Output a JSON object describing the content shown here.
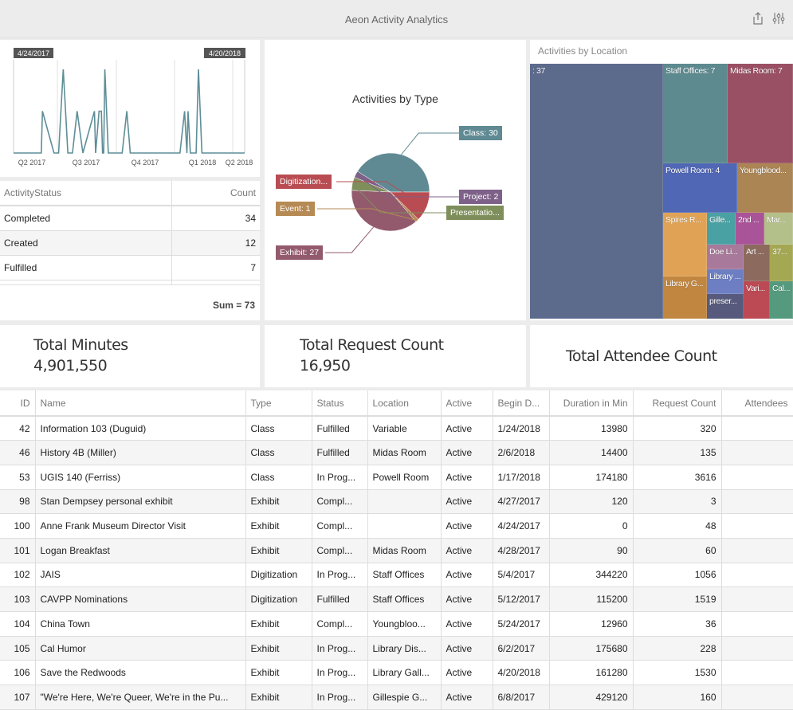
{
  "app": {
    "title": "Aeon Activity Analytics",
    "icons": [
      "share-icon",
      "settings-sliders-icon"
    ]
  },
  "timeline": {
    "range_start_label": "4/24/2017",
    "range_end_label": "4/20/2018",
    "x_ticks": [
      "Q2 2017",
      "Q3 2017",
      "Q4 2017",
      "Q1 2018",
      "Q2 2018"
    ],
    "line_color": "#5e8e97"
  },
  "status_table": {
    "headers": [
      "ActivityStatus",
      "Count"
    ],
    "rows": [
      {
        "status": "Completed",
        "count": "34"
      },
      {
        "status": "Created",
        "count": "12"
      },
      {
        "status": "Fulfilled",
        "count": "7"
      }
    ],
    "sum_label": "Sum = 73"
  },
  "chart_data": [
    {
      "type": "line",
      "title": "",
      "xlabel": "",
      "ylabel": "",
      "x_ticks": [
        "Q2 2017",
        "Q3 2017",
        "Q4 2017",
        "Q1 2018",
        "Q2 2018"
      ],
      "x_range": [
        "4/24/2017",
        "4/20/2018"
      ],
      "series": [
        {
          "name": "Activities",
          "values_note": "sparse daily counts with spikes of 1 and 2",
          "points": [
            {
              "t": 0.0,
              "y": 0
            },
            {
              "t": 0.12,
              "y": 0
            },
            {
              "t": 0.125,
              "y": 1
            },
            {
              "t": 0.175,
              "y": 0
            },
            {
              "t": 0.195,
              "y": 0
            },
            {
              "t": 0.215,
              "y": 2
            },
            {
              "t": 0.235,
              "y": 0
            },
            {
              "t": 0.255,
              "y": 0
            },
            {
              "t": 0.275,
              "y": 1
            },
            {
              "t": 0.3,
              "y": 0
            },
            {
              "t": 0.35,
              "y": 1
            },
            {
              "t": 0.355,
              "y": 0
            },
            {
              "t": 0.37,
              "y": 1
            },
            {
              "t": 0.38,
              "y": 1
            },
            {
              "t": 0.385,
              "y": 0
            },
            {
              "t": 0.39,
              "y": 0
            },
            {
              "t": 0.395,
              "y": 2
            },
            {
              "t": 0.41,
              "y": 0
            },
            {
              "t": 0.47,
              "y": 0
            },
            {
              "t": 0.49,
              "y": 1
            },
            {
              "t": 0.505,
              "y": 0
            },
            {
              "t": 0.72,
              "y": 0
            },
            {
              "t": 0.74,
              "y": 1
            },
            {
              "t": 0.75,
              "y": 0
            },
            {
              "t": 0.755,
              "y": 1
            },
            {
              "t": 0.765,
              "y": 0
            },
            {
              "t": 0.79,
              "y": 0
            },
            {
              "t": 0.8,
              "y": 2
            },
            {
              "t": 0.815,
              "y": 0
            },
            {
              "t": 1.0,
              "y": 0
            }
          ]
        }
      ],
      "ylim": [
        0,
        2
      ],
      "grid": true
    },
    {
      "type": "pie",
      "title": "Activities by Type",
      "slices": [
        {
          "label": "Class: 30",
          "name": "Class",
          "value": 30,
          "color": "#5f8a93"
        },
        {
          "label": "Project: 2",
          "name": "Project",
          "value": 2,
          "color": "#7e6189"
        },
        {
          "label": "Presentatio...",
          "name": "Presentation",
          "value": 4,
          "color": "#7f8f5c"
        },
        {
          "label": "Exhibit: 27",
          "name": "Exhibit",
          "value": 27,
          "color": "#935a6d"
        },
        {
          "label": "Event: 1",
          "name": "Event",
          "value": 1,
          "color": "#b68a55"
        },
        {
          "label": "Digitization...",
          "name": "Digitization",
          "value": 9,
          "color": "#b84c52"
        }
      ],
      "legend": "callout-labels"
    },
    {
      "type": "treemap",
      "title": "Activities by Location",
      "cells": [
        {
          "label": ": 37",
          "value": 37,
          "color": "#5c6a8c"
        },
        {
          "label": "Staff Offices: 7",
          "value": 7,
          "color": "#5d8a8f"
        },
        {
          "label": "Midas Room: 7",
          "value": 7,
          "color": "#9a5064"
        },
        {
          "label": "Powell Room: 4",
          "value": 4,
          "color": "#5067b5"
        },
        {
          "label": "Youngblood...",
          "value": 4,
          "color": "#ac8554"
        },
        {
          "label": "Spires R...",
          "value": 2,
          "color": "#e0a356"
        },
        {
          "label": "Library G...",
          "value": 2,
          "color": "#c18640"
        },
        {
          "label": "Gille...",
          "value": 1,
          "color": "#4aa1a3"
        },
        {
          "label": "2nd ...",
          "value": 1,
          "color": "#a95399"
        },
        {
          "label": "Mar...",
          "value": 1,
          "color": "#b4c08a"
        },
        {
          "label": "Doe Li...",
          "value": 1,
          "color": "#a8799a"
        },
        {
          "label": "Art ...",
          "value": 1,
          "color": "#8c6a5e"
        },
        {
          "label": "37...",
          "value": 1,
          "color": "#a5a852"
        },
        {
          "label": "Library ...",
          "value": 1,
          "color": "#6d7fc2"
        },
        {
          "label": "Vari...",
          "value": 1,
          "color": "#bc4a54"
        },
        {
          "label": "Cal...",
          "value": 1,
          "color": "#559a7e"
        },
        {
          "label": "preser...",
          "value": 1,
          "color": "#575a7c"
        }
      ]
    }
  ],
  "kpis": [
    {
      "label": "Total Minutes",
      "value": "4,901,550"
    },
    {
      "label": "Total Request Count",
      "value": "16,950"
    },
    {
      "label": "Total Attendee Count",
      "value": ""
    }
  ],
  "grid": {
    "headers": [
      "ID",
      "Name",
      "Type",
      "Status",
      "Location",
      "Active",
      "Begin D...",
      "Duration in Min",
      "Request Count",
      "Attendees"
    ],
    "rows": [
      [
        "42",
        "Information 103 (Duguid)",
        "Class",
        "Fulfilled",
        "Variable",
        "Active",
        "1/24/2018",
        "13980",
        "320",
        ""
      ],
      [
        "46",
        "History 4B (Miller)",
        "Class",
        "Fulfilled",
        "Midas Room",
        "Active",
        "2/6/2018",
        "14400",
        "135",
        ""
      ],
      [
        "53",
        "UGIS 140 (Ferriss)",
        "Class",
        "In Prog...",
        "Powell Room",
        "Active",
        "1/17/2018",
        "174180",
        "3616",
        ""
      ],
      [
        "98",
        "Stan Dempsey personal exhibit",
        "Exhibit",
        "Compl...",
        "",
        "Active",
        "4/27/2017",
        "120",
        "3",
        ""
      ],
      [
        "100",
        "Anne Frank Museum Director Visit",
        "Exhibit",
        "Compl...",
        "",
        "Active",
        "4/24/2017",
        "0",
        "48",
        ""
      ],
      [
        "101",
        "Logan Breakfast",
        "Exhibit",
        "Compl...",
        "Midas Room",
        "Active",
        "4/28/2017",
        "90",
        "60",
        ""
      ],
      [
        "102",
        "JAIS",
        "Digitization",
        "In Prog...",
        "Staff Offices",
        "Active",
        "5/4/2017",
        "344220",
        "1056",
        ""
      ],
      [
        "103",
        "CAVPP Nominations",
        "Digitization",
        "Fulfilled",
        "Staff Offices",
        "Active",
        "5/12/2017",
        "115200",
        "1519",
        ""
      ],
      [
        "104",
        "China Town",
        "Exhibit",
        "Compl...",
        "Youngbloo...",
        "Active",
        "5/24/2017",
        "12960",
        "36",
        ""
      ],
      [
        "105",
        "Cal Humor",
        "Exhibit",
        "In Prog...",
        "Library Dis...",
        "Active",
        "6/2/2017",
        "175680",
        "228",
        ""
      ],
      [
        "106",
        "Save the Redwoods",
        "Exhibit",
        "In Prog...",
        "Library Gall...",
        "Active",
        "4/20/2018",
        "161280",
        "1530",
        ""
      ],
      [
        "107",
        "\"We're Here, We're Queer, We're in the Pu...",
        "Exhibit",
        "In Prog...",
        "Gillespie G...",
        "Active",
        "6/8/2017",
        "429120",
        "160",
        ""
      ]
    ]
  }
}
